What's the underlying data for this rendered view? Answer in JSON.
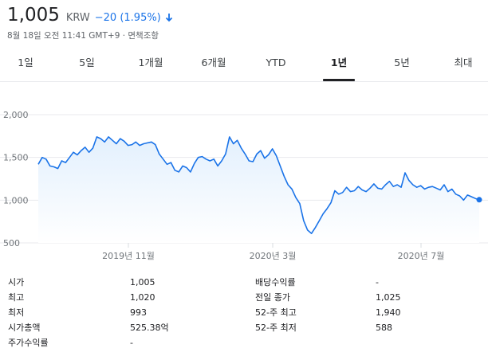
{
  "quote": {
    "price": "1,005",
    "currency": "KRW",
    "change": "−20 (1.95%)",
    "change_color": "#1a73e8",
    "direction_icon": "arrow-down-icon",
    "meta": "8월 18일 오전 11:41 GMT+9 · 면책조항"
  },
  "tabs": [
    {
      "label": "1일",
      "active": false
    },
    {
      "label": "5일",
      "active": false
    },
    {
      "label": "1개월",
      "active": false
    },
    {
      "label": "6개월",
      "active": false
    },
    {
      "label": "YTD",
      "active": false
    },
    {
      "label": "1년",
      "active": true
    },
    {
      "label": "5년",
      "active": false
    },
    {
      "label": "최대",
      "active": false
    }
  ],
  "chart_data": {
    "type": "area",
    "x_tick_labels": [
      "2019년 11월",
      "2020년 3월",
      "2020년 7월"
    ],
    "y_tick_labels": [
      "2,000",
      "1,500",
      "1,000",
      "500"
    ],
    "ylim": [
      500,
      2000
    ],
    "line_color": "#1a73e8",
    "grid": "horizontal",
    "series": [
      {
        "values": [
          1420,
          1500,
          1480,
          1400,
          1390,
          1370,
          1460,
          1440,
          1500,
          1560,
          1530,
          1580,
          1620,
          1560,
          1610,
          1740,
          1720,
          1680,
          1740,
          1700,
          1660,
          1720,
          1690,
          1640,
          1650,
          1680,
          1640,
          1660,
          1670,
          1680,
          1650,
          1540,
          1480,
          1420,
          1440,
          1350,
          1330,
          1400,
          1380,
          1330,
          1430,
          1500,
          1510,
          1480,
          1460,
          1480,
          1400,
          1460,
          1540,
          1740,
          1660,
          1700,
          1610,
          1540,
          1460,
          1450,
          1540,
          1580,
          1490,
          1530,
          1600,
          1520,
          1400,
          1280,
          1180,
          1130,
          1030,
          960,
          760,
          650,
          610,
          680,
          760,
          840,
          900,
          970,
          1110,
          1070,
          1090,
          1150,
          1100,
          1110,
          1160,
          1120,
          1100,
          1140,
          1190,
          1140,
          1130,
          1180,
          1220,
          1160,
          1180,
          1150,
          1320,
          1230,
          1180,
          1150,
          1170,
          1130,
          1150,
          1160,
          1140,
          1120,
          1180,
          1100,
          1130,
          1070,
          1050,
          1000,
          1060,
          1040,
          1020,
          1005
        ]
      }
    ]
  },
  "stats": {
    "left": [
      {
        "label": "시가",
        "value": "1,005"
      },
      {
        "label": "최고",
        "value": "1,020"
      },
      {
        "label": "최저",
        "value": "993"
      },
      {
        "label": "시가총액",
        "value": "525.38억"
      },
      {
        "label": "주가수익률",
        "value": "-"
      }
    ],
    "right": [
      {
        "label": "배당수익률",
        "value": "-"
      },
      {
        "label": "전일 종가",
        "value": "1,025"
      },
      {
        "label": "52-주 최고",
        "value": "1,940"
      },
      {
        "label": "52-주 최저",
        "value": "588"
      }
    ]
  }
}
